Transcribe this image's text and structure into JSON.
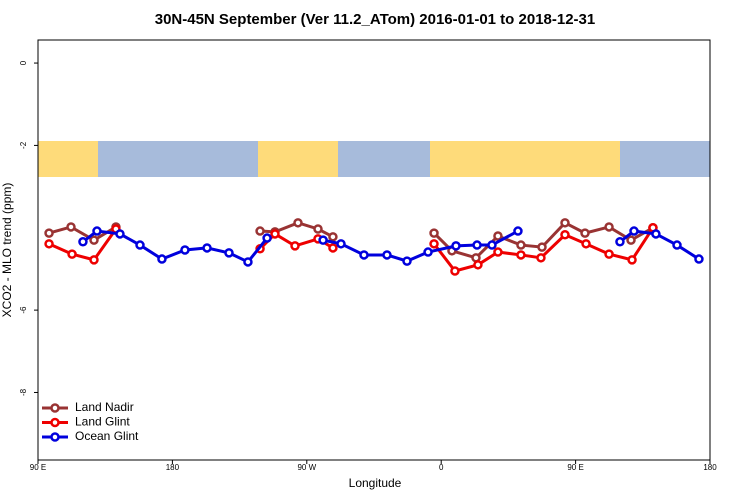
{
  "chart_data": {
    "type": "line",
    "title": "30N-45N September (Ver 11.2_ATom)   2016-01-01 to 2018-12-31",
    "x_label": "Longitude",
    "y_label": "XCO2 - MLO trend (ppm)",
    "xlim": [
      90,
      540
    ],
    "ylim": [
      -9.64,
      0.56
    ],
    "xticks": [
      {
        "value": 90,
        "label": "90 E"
      },
      180,
      {
        "value": 270,
        "label": "90 W"
      },
      {
        "value": 360,
        "label": "0"
      },
      {
        "value": 450,
        "label": "90 E"
      },
      {
        "value": 540,
        "label": "180"
      }
    ],
    "yticks": [
      0,
      -2,
      -6,
      -8
    ],
    "legend": "bottom-left",
    "series": [
      {
        "name": "Land Nadir",
        "color": "#993333",
        "x": [
          97.4,
          112.1,
          127.5,
          142.2,
          null,
          238.7,
          248.7,
          264.1,
          277.5,
          287.5,
          null,
          355.2,
          367.2,
          383.3,
          398.0,
          413.4,
          427.5,
          442.9,
          456.3,
          472.4,
          487.1,
          501.8
        ],
        "values": [
          -4.13,
          -3.98,
          -4.3,
          -3.98,
          null,
          -4.08,
          -4.1,
          -3.88,
          -4.03,
          -4.22,
          null,
          -4.13,
          -4.56,
          -4.73,
          -4.2,
          -4.42,
          -4.47,
          -3.88,
          -4.13,
          -3.98,
          -4.3,
          -4.0
        ]
      },
      {
        "name": "Land Glint",
        "color": "#ee0000",
        "x": [
          97.4,
          112.8,
          127.5,
          142.2,
          null,
          238.7,
          248.7,
          262.1,
          277.5,
          287.5,
          null,
          355.2,
          369.2,
          384.6,
          398.0,
          413.4,
          426.8,
          442.9,
          457.0,
          472.4,
          487.8,
          501.8
        ],
        "values": [
          -4.39,
          -4.64,
          -4.78,
          -4.03,
          null,
          -4.51,
          -4.15,
          -4.44,
          -4.27,
          -4.49,
          null,
          -4.39,
          -5.05,
          -4.9,
          -4.59,
          -4.66,
          -4.73,
          -4.17,
          -4.39,
          -4.64,
          -4.78,
          -4.0
        ]
      },
      {
        "name": "Ocean Glint",
        "color": "#0000dd",
        "x": [
          120.1,
          129.5,
          144.9,
          158.3,
          173.0,
          188.4,
          203.2,
          217.9,
          230.6,
          243.4,
          null,
          280.9,
          292.9,
          308.3,
          323.7,
          337.1,
          351.2,
          369.9,
          384.0,
          394.0,
          411.4,
          null,
          479.7,
          489.1,
          503.8,
          517.9,
          532.6
        ],
        "values": [
          -4.34,
          -4.08,
          -4.15,
          -4.42,
          -4.76,
          -4.54,
          -4.49,
          -4.61,
          -4.83,
          -4.25,
          null,
          -4.3,
          -4.39,
          -4.66,
          -4.66,
          -4.81,
          -4.59,
          -4.44,
          -4.42,
          -4.42,
          -4.08,
          null,
          -4.34,
          -4.08,
          -4.15,
          -4.42,
          -4.76
        ]
      }
    ]
  }
}
